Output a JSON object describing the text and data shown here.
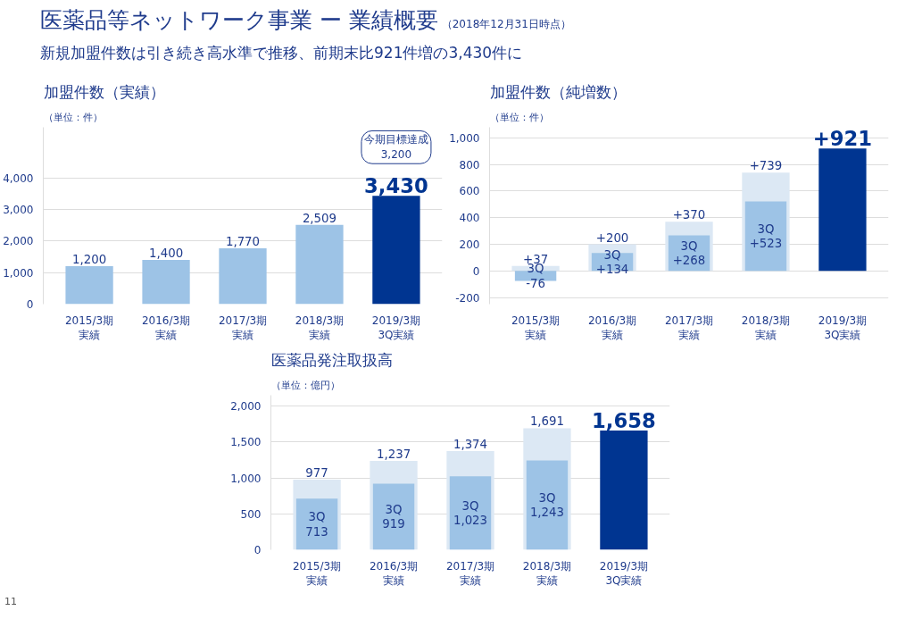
{
  "chart_data": [
    {
      "type": "bar",
      "title": "加盟件数（実績）",
      "subtitle": "（単位：件）",
      "categories": [
        "2015/3期実績",
        "2016/3期実績",
        "2017/3期実績",
        "2018/3期実績",
        "2019/3期3Q実績"
      ],
      "values": [
        1200,
        1400,
        1770,
        2509,
        3430
      ],
      "value_labels": [
        "1,200",
        "1,400",
        "1,770",
        "2,509",
        "3,430"
      ],
      "colors": [
        "#9dc3e6",
        "#9dc3e6",
        "#9dc3e6",
        "#9dc3e6",
        "#003591"
      ],
      "ylim": [
        0,
        5600
      ],
      "yticks": [
        0,
        {
          "value": 1000,
          "label": "1,000"
        },
        {
          "value": 2000,
          "label": "2,000"
        },
        {
          "value": 3000,
          "label": "3,000"
        },
        {
          "value": 4000,
          "label": "4,000"
        }
      ],
      "grid": "y",
      "annotations": [
        "医薬品等ネットワーク事業 ー 業績概要",
        "（2018年12月31日時点）",
        "新規加盟件数は引き続き高水準で推移、前期末比921件増の3,430件に",
        "今期目標達成\n3,200",
        "11"
      ]
    },
    {
      "type": "bar",
      "title": "加盟件数（純増数）",
      "subtitle": "（単位：件）",
      "categories": [
        "2015/3期実績",
        "2016/3期実績",
        "2017/3期実績",
        "2018/3期実績",
        "2019/3期3Q実績"
      ],
      "series": [
        {
          "color": "#dce8f4",
          "values": [
            37,
            200,
            370,
            739,
            null
          ],
          "value_labels": [
            "+37",
            "+200",
            "+370",
            "+739",
            null
          ]
        },
        {
          "color": "#9dc3e6",
          "values": [
            -76,
            134,
            268,
            523,
            null
          ],
          "value_labels": [
            "3Q\n-76",
            "3Q\n+134",
            "3Q\n+268",
            "3Q\n+523",
            null
          ]
        },
        {
          "color": "#003591",
          "values": [
            null,
            null,
            null,
            null,
            921
          ],
          "value_labels": [
            null,
            null,
            null,
            null,
            "+921"
          ]
        }
      ],
      "ylim": [
        -250,
        1080
      ],
      "yticks": [
        -200,
        0,
        200,
        400,
        600,
        800,
        {
          "value": 1000,
          "label": "1,000"
        }
      ],
      "grid": "y"
    },
    {
      "type": "bar",
      "title": "医薬品発注取扱高",
      "subtitle": "（単位：億円）",
      "categories": [
        "2015/3期実績",
        "2016/3期実績",
        "2017/3期実績",
        "2018/3期実績",
        "2019/3期3Q実績"
      ],
      "series": [
        {
          "color": "#dce8f4",
          "values": [
            977,
            1237,
            1374,
            1691,
            null
          ],
          "value_labels": [
            "977",
            "1,237",
            "1,374",
            "1,691",
            null
          ]
        },
        {
          "color": "#9dc3e6",
          "values": [
            713,
            919,
            1023,
            1243,
            null
          ],
          "value_labels": [
            "3Q\n713",
            "3Q\n919",
            "3Q\n1,023",
            "3Q\n1,243",
            null
          ]
        },
        {
          "color": "#003591",
          "values": [
            null,
            null,
            null,
            null,
            1658
          ],
          "value_labels": [
            null,
            null,
            null,
            null,
            "1,658"
          ]
        }
      ],
      "ylim": [
        0,
        2150
      ],
      "yticks": [
        0,
        500,
        {
          "value": 1000,
          "label": "1,000"
        },
        {
          "value": 1500,
          "label": "1,500"
        },
        {
          "value": 2000,
          "label": "2,000"
        }
      ],
      "grid": "y"
    }
  ]
}
